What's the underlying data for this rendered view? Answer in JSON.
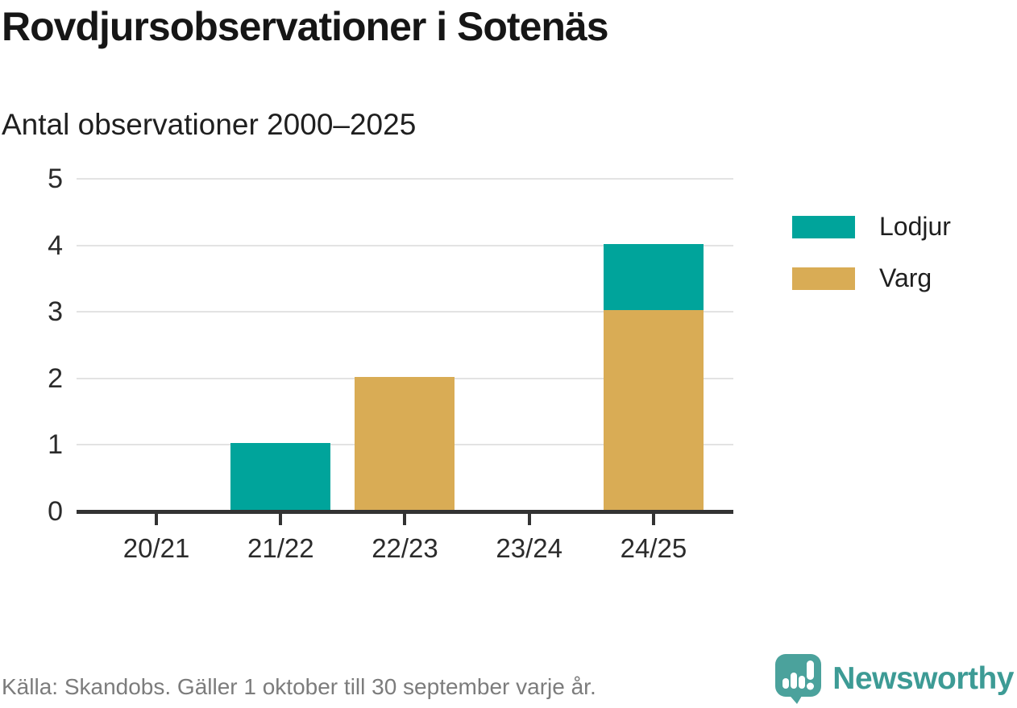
{
  "title": "Rovdjursobservationer i Sotenäs",
  "subtitle": "Antal observationer 2000–2025",
  "footer": {
    "source": "Källa: Skandobs. Gäller 1 oktober till 30 september varje år."
  },
  "brand": {
    "name": "Newsworthy",
    "logo_icon": "speech-bubble-bar-chart-icon"
  },
  "colors": {
    "lodjur": "#00a49b",
    "varg": "#d9ac55",
    "axis": "#333333",
    "grid": "#e3e3e3",
    "text": "#2b2b2b",
    "muted": "#7c7c7c",
    "brand": "#3d9b95"
  },
  "legend": [
    {
      "label": "Lodjur",
      "color": "#00a49b"
    },
    {
      "label": "Varg",
      "color": "#d9ac55"
    }
  ],
  "chart_data": {
    "type": "bar",
    "stacked": true,
    "title": "Rovdjursobservationer i Sotenäs",
    "subtitle": "Antal observationer 2000–2025",
    "categories": [
      "20/21",
      "21/22",
      "22/23",
      "23/24",
      "24/25"
    ],
    "series": [
      {
        "name": "Varg",
        "color": "#d9ac55",
        "values": [
          0,
          0,
          2,
          0,
          3
        ]
      },
      {
        "name": "Lodjur",
        "color": "#00a49b",
        "values": [
          0,
          1,
          0,
          0,
          1
        ]
      }
    ],
    "totals": [
      0,
      1,
      2,
      0,
      4
    ],
    "ylim": [
      0,
      5
    ],
    "yticks": [
      0,
      1,
      2,
      3,
      4,
      5
    ],
    "xlabel": "",
    "ylabel": "",
    "grid": true,
    "legend_position": "right"
  }
}
